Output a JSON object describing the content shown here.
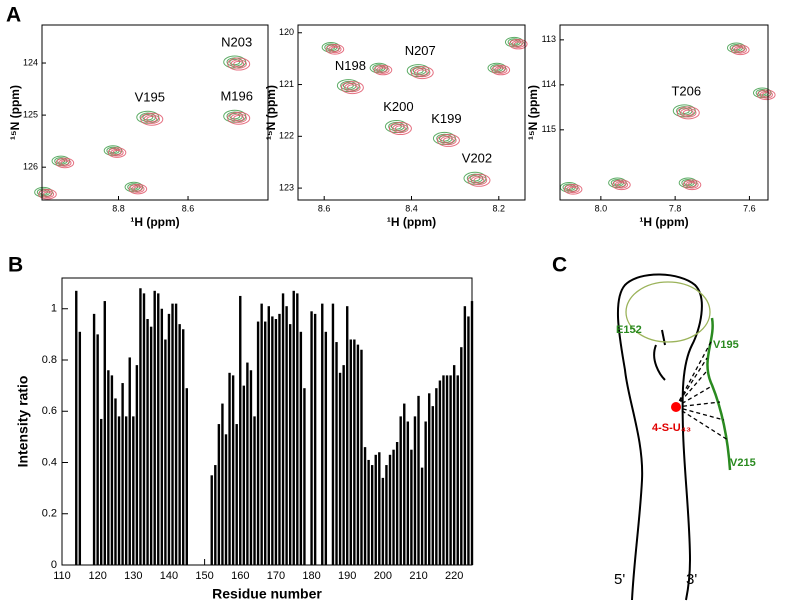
{
  "panel_labels": [
    "A",
    "B",
    "C"
  ],
  "spectra": [
    {
      "xlabel": "¹H (ppm)",
      "ylabel": "¹⁵N (ppm)",
      "xlim": [
        9.02,
        8.37
      ],
      "ylim": [
        123.27,
        126.63
      ],
      "xticks": [
        8.8,
        8.6
      ],
      "yticks": [
        124,
        125,
        126
      ],
      "peaks": [
        {
          "label": "N203",
          "x": 8.46,
          "y": 124.0
        },
        {
          "label": "V195",
          "x": 8.71,
          "y": 125.06
        },
        {
          "label": "M196",
          "x": 8.46,
          "y": 125.04
        }
      ],
      "other_peaks": {
        "x": [
          8.81,
          8.96,
          8.75,
          9.01
        ],
        "y": [
          125.7,
          125.9,
          126.4,
          126.5
        ]
      }
    },
    {
      "xlabel": "¹H (ppm)",
      "ylabel": "¹⁵N (ppm)",
      "xlim": [
        8.66,
        8.14
      ],
      "ylim": [
        119.85,
        123.23
      ],
      "xticks": [
        8.6,
        8.4,
        8.2
      ],
      "yticks": [
        120,
        121,
        122,
        123
      ],
      "peaks": [
        {
          "label": "N198",
          "x": 8.54,
          "y": 121.04
        },
        {
          "label": "N207",
          "x": 8.38,
          "y": 120.75
        },
        {
          "label": "K200",
          "x": 8.43,
          "y": 121.83
        },
        {
          "label": "K199",
          "x": 8.32,
          "y": 122.06
        },
        {
          "label": "V202",
          "x": 8.25,
          "y": 122.83
        }
      ],
      "other_peaks": {
        "x": [
          8.2,
          8.47,
          8.58,
          8.16
        ],
        "y": [
          120.7,
          120.7,
          120.3,
          120.2
        ]
      }
    },
    {
      "xlabel": "¹H (ppm)",
      "ylabel": "¹⁵N (ppm)",
      "xlim": [
        8.11,
        7.55
      ],
      "ylim": [
        112.67,
        116.56
      ],
      "xticks": [
        {
          "value": 8.0,
          "label": "8.0"
        },
        7.8,
        7.6
      ],
      "yticks": [
        113,
        114,
        115
      ],
      "peaks": [
        {
          "label": "T206",
          "x": 7.77,
          "y": 114.6
        }
      ],
      "other_peaks": {
        "x": [
          7.63,
          7.56,
          7.95,
          7.76,
          8.08
        ],
        "y": [
          113.2,
          114.2,
          116.2,
          116.2,
          116.3
        ]
      }
    }
  ],
  "chart_data": {
    "type": "bar",
    "xlabel": "Residue number",
    "ylabel": "Intensity ratio",
    "color": "#000000",
    "xlim": [
      110,
      225
    ],
    "ylim": [
      0,
      1.12
    ],
    "xticks": [
      110,
      120,
      130,
      140,
      150,
      160,
      170,
      180,
      190,
      200,
      210,
      220
    ],
    "yticks": [
      0,
      0.2,
      0.4,
      0.6,
      0.8,
      1
    ],
    "x": [
      114,
      115,
      119,
      120,
      121,
      122,
      123,
      124,
      125,
      126,
      127,
      128,
      129,
      130,
      131,
      132,
      133,
      134,
      135,
      136,
      137,
      138,
      139,
      140,
      141,
      142,
      143,
      144,
      145,
      152,
      153,
      154,
      155,
      156,
      157,
      158,
      159,
      160,
      161,
      162,
      163,
      164,
      165,
      166,
      167,
      168,
      169,
      170,
      171,
      172,
      173,
      174,
      175,
      176,
      177,
      178,
      180,
      181,
      183,
      184,
      186,
      187,
      188,
      189,
      190,
      191,
      192,
      193,
      194,
      195,
      196,
      197,
      198,
      199,
      200,
      201,
      202,
      203,
      204,
      205,
      206,
      207,
      208,
      209,
      210,
      211,
      212,
      213,
      214,
      215,
      216,
      217,
      218,
      219,
      220,
      221,
      222,
      223,
      224,
      225
    ],
    "values": [
      1.07,
      0.91,
      0.98,
      0.9,
      0.57,
      1.03,
      0.76,
      0.74,
      0.65,
      0.58,
      0.71,
      0.58,
      0.81,
      0.58,
      0.78,
      1.08,
      1.06,
      0.96,
      0.93,
      1.07,
      1.06,
      1.0,
      0.88,
      0.98,
      1.02,
      1.02,
      0.94,
      0.92,
      0.69,
      0.35,
      0.39,
      0.55,
      0.63,
      0.51,
      0.75,
      0.74,
      0.55,
      1.05,
      0.7,
      0.79,
      0.76,
      0.58,
      0.95,
      1.02,
      0.95,
      1.01,
      0.97,
      0.96,
      0.98,
      1.06,
      1.01,
      0.94,
      1.07,
      1.06,
      0.91,
      0.69,
      0.99,
      0.98,
      1.02,
      0.91,
      1.02,
      0.87,
      0.75,
      0.78,
      1.01,
      0.88,
      0.88,
      0.86,
      0.84,
      0.46,
      0.41,
      0.39,
      0.43,
      0.44,
      0.34,
      0.39,
      0.43,
      0.45,
      0.48,
      0.58,
      0.63,
      0.56,
      0.45,
      0.58,
      0.66,
      0.38,
      0.56,
      0.67,
      0.62,
      0.69,
      0.72,
      0.74,
      0.74,
      0.74,
      0.78,
      0.74,
      0.85,
      1.01,
      0.97,
      1.03
    ]
  },
  "diagram": {
    "labels": [
      "E152",
      "V195",
      "4-S-U₄₃",
      "V215",
      "5'",
      "3'"
    ]
  }
}
